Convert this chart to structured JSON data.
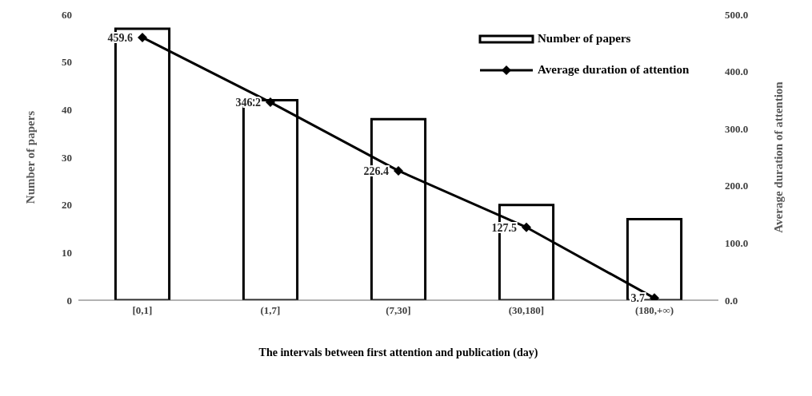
{
  "chart_data": {
    "type": "bar",
    "xlabel": "The intervals between first attention and publication (day)",
    "ylabel": "Number of papers",
    "y2label": "Average duration of attention",
    "categories": [
      "[0,1]",
      "(1,7]",
      "(7,30]",
      "(30,180]",
      "(180,+∞)"
    ],
    "series": [
      {
        "name": "Number of papers",
        "color": "#ffffff",
        "values": [
          57,
          42,
          38,
          20,
          17
        ]
      },
      {
        "name": "Average duration of attention",
        "type": "line",
        "axis": "y2",
        "color": "#000000",
        "marker": "diamond",
        "values": [
          459.6,
          346.2,
          226.4,
          127.5,
          3.7
        ],
        "value_labels": [
          "459.6",
          "346.2",
          "226.4",
          "127.5",
          "3.7"
        ]
      }
    ],
    "ylim": [
      0,
      60
    ],
    "yticks": [
      0,
      10,
      20,
      30,
      40,
      50,
      60
    ],
    "y2lim": [
      0,
      500
    ],
    "y2ticks": [
      {
        "value": 0,
        "label": "0.0"
      },
      {
        "value": 100,
        "label": "100.0"
      },
      {
        "value": 200,
        "label": "200.0"
      },
      {
        "value": 300,
        "label": "300.0"
      },
      {
        "value": 400,
        "label": "400.0"
      },
      {
        "value": 500,
        "label": "500.0"
      }
    ],
    "grid": false,
    "legend": "top right"
  }
}
